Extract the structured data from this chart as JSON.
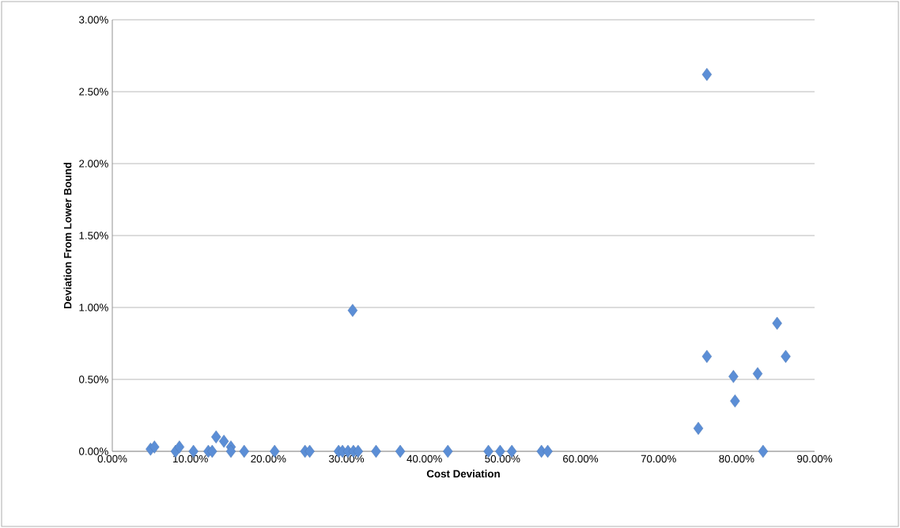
{
  "chart_data": {
    "type": "scatter",
    "xlabel": "Cost Deviation",
    "ylabel": "Deviation From Lower Bound",
    "x": [
      4.9,
      5.4,
      8.1,
      8.6,
      10.4,
      12.3,
      12.8,
      13.3,
      14.3,
      15.2,
      15.2,
      16.9,
      20.8,
      24.7,
      25.3,
      29.0,
      29.5,
      30.2,
      30.9,
      31.5,
      33.8,
      36.9,
      43.0,
      48.2,
      49.7,
      51.2,
      55.0,
      55.8,
      75.1,
      83.4,
      85.2,
      76.2,
      86.3,
      79.6,
      82.7,
      79.8,
      76.2,
      30.8
    ],
    "values": [
      0.015,
      0.03,
      0.0,
      0.03,
      0.0,
      0.0,
      0.0,
      0.1,
      0.07,
      0.03,
      0.0,
      0.0,
      0.0,
      0.0,
      0.0,
      0.0,
      0.0,
      0.0,
      0.0,
      0.0,
      0.0,
      0.0,
      0.0,
      0.0,
      0.0,
      0.0,
      0.0,
      0.0,
      0.16,
      0.0,
      0.89,
      0.66,
      0.66,
      0.52,
      0.54,
      0.35,
      2.62,
      0.98
    ],
    "color": "#5b8ed6",
    "marker": "diamond",
    "grid": "y",
    "xlim": [
      0,
      90
    ],
    "ylim": [
      0,
      3
    ],
    "xticks": [
      {
        "value": 0,
        "label": "0.00%"
      },
      {
        "value": 10,
        "label": "10.00%"
      },
      {
        "value": 20,
        "label": "20.00%"
      },
      {
        "value": 30,
        "label": "30.00%"
      },
      {
        "value": 40,
        "label": "40.00%"
      },
      {
        "value": 50,
        "label": "50.00%"
      },
      {
        "value": 60,
        "label": "60.00%"
      },
      {
        "value": 70,
        "label": "70.00%"
      },
      {
        "value": 80,
        "label": "80.00%"
      },
      {
        "value": 90,
        "label": "90.00%"
      }
    ],
    "yticks": [
      {
        "value": 0,
        "label": "0.00%"
      },
      {
        "value": 0.5,
        "label": "0.50%"
      },
      {
        "value": 1,
        "label": "1.00%"
      },
      {
        "value": 1.5,
        "label": "1.50%"
      },
      {
        "value": 2,
        "label": "2.00%"
      },
      {
        "value": 2.5,
        "label": "2.50%"
      },
      {
        "value": 3,
        "label": "3.00%"
      }
    ]
  }
}
